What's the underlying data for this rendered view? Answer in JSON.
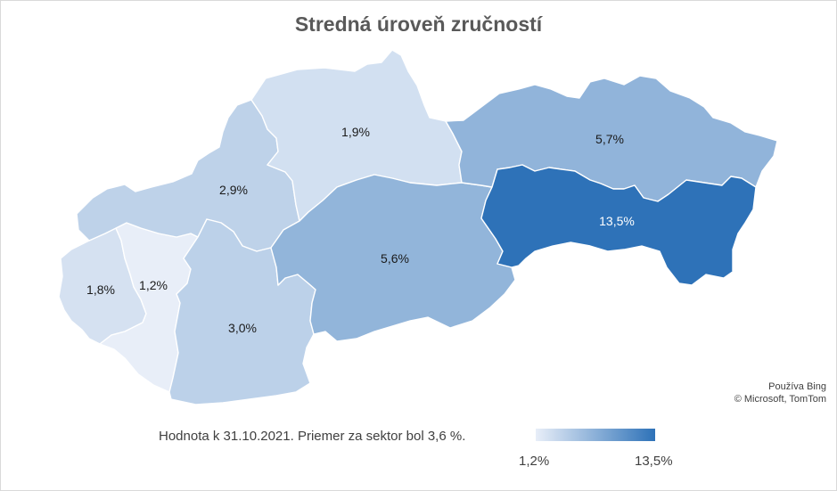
{
  "title": "Stredná úroveň zručností",
  "regions": [
    {
      "id": "bratislava",
      "label": "1,8%",
      "value": 1.8
    },
    {
      "id": "trnava",
      "label": "1,2%",
      "value": 1.2
    },
    {
      "id": "trencin",
      "label": "2,9%",
      "value": 2.9
    },
    {
      "id": "nitra",
      "label": "3,0%",
      "value": 3.0
    },
    {
      "id": "zilina",
      "label": "1,9%",
      "value": 1.9
    },
    {
      "id": "banska-bystrica",
      "label": "5,6%",
      "value": 5.6
    },
    {
      "id": "presov",
      "label": "5,7%",
      "value": 5.7
    },
    {
      "id": "kosice",
      "label": "13,5%",
      "value": 13.5
    }
  ],
  "attribution": {
    "line1": "Používa Bing",
    "line2": "© Microsoft, TomTom"
  },
  "note": "Hodnota k 31.10.2021. Priemer za sektor bol 3,6 %.",
  "legend": {
    "min_label": "1,2%",
    "max_label": "13,5%",
    "min": 1.2,
    "max": 13.5,
    "color_min": "#e8eef8",
    "color_max": "#2e72b8"
  }
}
